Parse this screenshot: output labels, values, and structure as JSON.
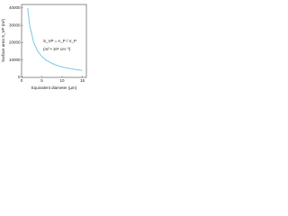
{
  "chart_data": {
    "type": "line",
    "y_label": "Surface area S_VP (m²)",
    "x_label": "Equivalent diameter (µm)",
    "annotations": [
      "S_VP = A_P / V_P",
      "(m² • 10⁶ cm⁻³)"
    ],
    "x": [
      1.5,
      2,
      3,
      4,
      5,
      6,
      8,
      10,
      12,
      15
    ],
    "series": [
      {
        "color": "#6cc3e6",
        "values": [
          40000,
          30000,
          20000,
          15000,
          12000,
          10000,
          7500,
          6000,
          5000,
          4000
        ]
      }
    ],
    "xlim": [
      0,
      16
    ],
    "xticks": [
      0,
      5,
      10,
      15
    ],
    "ylim": [
      0,
      42000
    ],
    "yticks": [
      0,
      10000,
      20000,
      30000,
      40000
    ]
  }
}
